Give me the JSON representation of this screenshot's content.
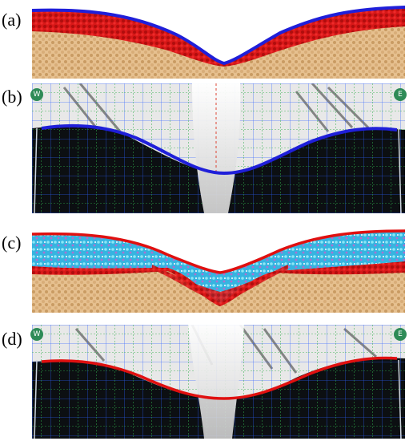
{
  "panels": [
    {
      "label": "(a)",
      "kind": "simulation",
      "surface_color": "#1f1fd9"
    },
    {
      "label": "(b)",
      "kind": "experiment",
      "surface_color": "#1f1fd9",
      "left_marker": "W",
      "right_marker": "E"
    },
    {
      "label": "(c)",
      "kind": "simulation",
      "surface_color": "#e01010"
    },
    {
      "label": "(d)",
      "kind": "experiment",
      "surface_color": "#e01010",
      "left_marker": "W",
      "right_marker": "E"
    }
  ],
  "colors": {
    "sand": "#e4bc8a",
    "red_layer": "#d81818",
    "cyan_layer": "#36b4e0",
    "dark_bg": "#0c0f12",
    "grid_blue": "#2a5fff",
    "grid_green": "#2fae4a"
  }
}
